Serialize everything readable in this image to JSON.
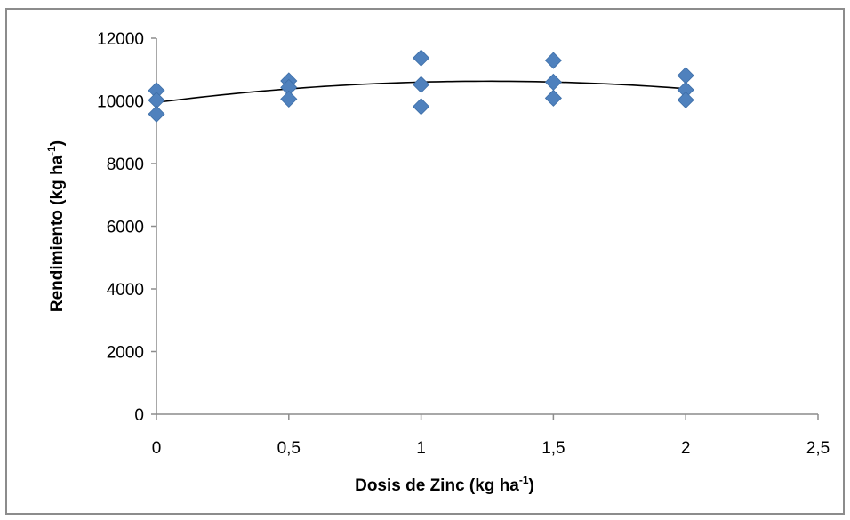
{
  "chart_data": {
    "type": "scatter",
    "xlabel": "Dosis de Zinc (kg ha",
    "xlabel_sup": "-1",
    "xlabel_end": ")",
    "ylabel": "Rendimiento (kg ha",
    "ylabel_sup": "-1",
    "ylabel_end": ")",
    "xlim": [
      0,
      2.5
    ],
    "ylim": [
      0,
      12000
    ],
    "x_ticks": [
      "0",
      "0,5",
      "1",
      "1,5",
      "2",
      "2,5"
    ],
    "x_tick_values": [
      0,
      0.5,
      1,
      1.5,
      2,
      2.5
    ],
    "y_ticks": [
      "0",
      "2000",
      "4000",
      "6000",
      "8000",
      "10000",
      "12000"
    ],
    "y_tick_values": [
      0,
      2000,
      4000,
      6000,
      8000,
      10000,
      12000
    ],
    "grid": false,
    "legend": "none",
    "series": [
      {
        "points": [
          {
            "x": 0,
            "y": 10330
          },
          {
            "x": 0,
            "y": 10020
          },
          {
            "x": 0,
            "y": 9580
          },
          {
            "x": 0.5,
            "y": 10640
          },
          {
            "x": 0.5,
            "y": 10430
          },
          {
            "x": 0.5,
            "y": 10060
          },
          {
            "x": 1,
            "y": 11370
          },
          {
            "x": 1,
            "y": 10520
          },
          {
            "x": 1,
            "y": 9820
          },
          {
            "x": 1.5,
            "y": 11290
          },
          {
            "x": 1.5,
            "y": 10600
          },
          {
            "x": 1.5,
            "y": 10090
          },
          {
            "x": 2,
            "y": 10810
          },
          {
            "x": 2,
            "y": 10350
          },
          {
            "x": 2,
            "y": 10030
          }
        ],
        "color": "#4f81bd",
        "marker": "diamond"
      }
    ],
    "trendline": {
      "type": "polynomial-order-2",
      "x_range": [
        0,
        2
      ],
      "coefficients": [
        9950,
        1080,
        -430
      ],
      "color": "#000000"
    }
  }
}
